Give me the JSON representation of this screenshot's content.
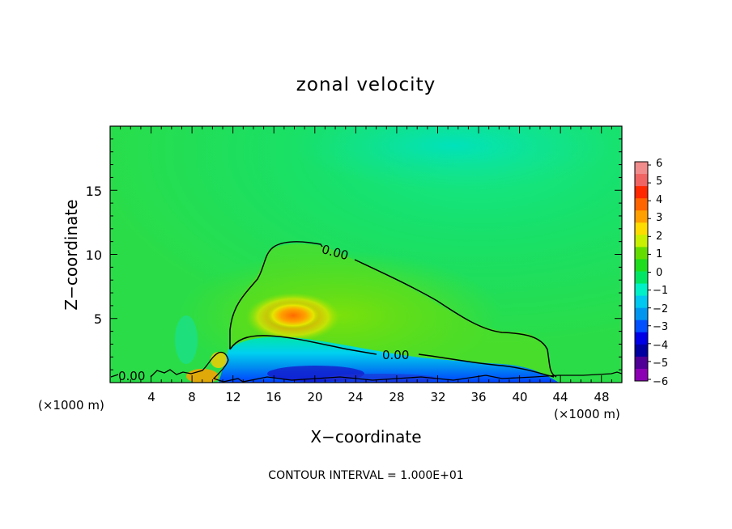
{
  "chart_data": {
    "type": "heatmap",
    "title": "zonal velocity",
    "xlabel": "X−coordinate",
    "ylabel": "Z−coordinate",
    "x_unit_left": "(×1000 m)",
    "x_unit_right": "(×1000 m)",
    "footer": "CONTOUR INTERVAL = 1.000E+01",
    "xlim": [
      0,
      50
    ],
    "ylim": [
      0,
      20
    ],
    "x_ticks": [
      4,
      8,
      12,
      16,
      20,
      24,
      28,
      32,
      36,
      40,
      44,
      48
    ],
    "y_ticks": [
      5,
      10,
      15
    ],
    "x_tick_labels": [
      "4",
      "8",
      "12",
      "16",
      "20",
      "24",
      "28",
      "32",
      "36",
      "40",
      "44",
      "48"
    ],
    "y_tick_labels": [
      "5",
      "10",
      "15"
    ],
    "contour_labels": [
      "0.00",
      "0.00",
      "0.00"
    ],
    "colorbar": {
      "levels": [
        6,
        5,
        4,
        3,
        2,
        1,
        0,
        -1,
        -2,
        -3,
        -4,
        -5,
        -6
      ],
      "labels": [
        "6",
        "5",
        "4",
        "3",
        "2",
        "1",
        "0",
        "−1",
        "−2",
        "−3",
        "−4",
        "−5",
        "−6"
      ],
      "colors": [
        "#f08c8c",
        "#f06464",
        "#ff2800",
        "#ff6400",
        "#ffa000",
        "#ffdc00",
        "#c8f000",
        "#64dc00",
        "#1edc1e",
        "#00e664",
        "#00f0c8",
        "#00c8f0",
        "#0096f0",
        "#0050ff",
        "#0000e6",
        "#0000a0",
        "#500096",
        "#8c00b4"
      ]
    }
  }
}
